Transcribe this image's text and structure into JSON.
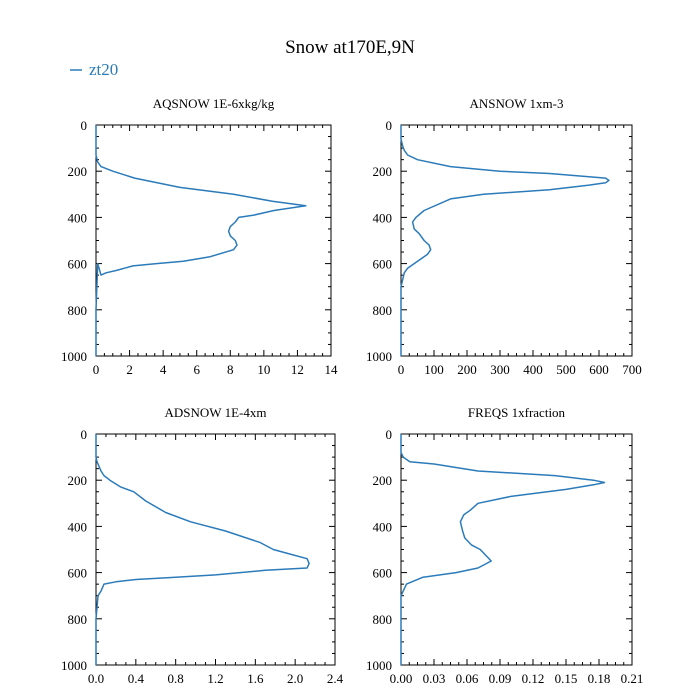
{
  "title": "Snow at170E,9N",
  "legend": {
    "label": "zt20",
    "color": "#2b7bba",
    "placement": "top-left"
  },
  "chart_data": [
    {
      "type": "line",
      "title": "AQSNOW  1E-6xkg/kg",
      "xlim": [
        0,
        14
      ],
      "ylim": [
        1000,
        0
      ],
      "xticks": [
        "0",
        "2",
        "4",
        "6",
        "8",
        "10",
        "12",
        "14"
      ],
      "yticks": [
        "0",
        "200",
        "400",
        "600",
        "800",
        "1000"
      ],
      "series": [
        {
          "name": "zt20",
          "x": [
            0,
            0,
            0.1,
            0.3,
            0.6,
            1.2,
            2.2,
            3.6,
            5.2,
            6.8,
            8.2,
            8.4,
            8.3,
            8.0,
            7.9,
            8.0,
            8.3,
            8.5,
            9.4,
            10.6,
            12.5,
            10.5,
            8.2,
            5.0,
            2.3,
            1.0,
            0.3,
            0.1,
            0,
            0,
            0,
            0,
            0,
            0,
            0
          ],
          "y": [
            1000,
            800,
            600,
            650,
            640,
            630,
            610,
            600,
            590,
            570,
            540,
            520,
            500,
            480,
            460,
            440,
            420,
            400,
            390,
            370,
            350,
            330,
            300,
            270,
            230,
            200,
            180,
            160,
            130,
            110,
            90,
            70,
            50,
            30,
            0
          ]
        }
      ]
    },
    {
      "type": "line",
      "title": "ANSNOW  1xm-3",
      "xlim": [
        0,
        700
      ],
      "ylim": [
        1000,
        0
      ],
      "xticks": [
        "0",
        "100",
        "200",
        "300",
        "400",
        "500",
        "600",
        "700"
      ],
      "yticks": [
        "0",
        "200",
        "400",
        "600",
        "800",
        "1000"
      ],
      "series": [
        {
          "name": "zt20",
          "x": [
            0,
            0,
            0,
            10,
            20,
            40,
            60,
            80,
            90,
            85,
            70,
            55,
            40,
            35,
            45,
            70,
            150,
            250,
            450,
            570,
            620,
            630,
            620,
            450,
            300,
            150,
            50,
            20,
            10,
            5,
            0,
            0,
            0,
            0
          ],
          "y": [
            1000,
            800,
            700,
            640,
            620,
            600,
            580,
            560,
            540,
            520,
            500,
            470,
            450,
            420,
            400,
            370,
            320,
            300,
            280,
            260,
            250,
            240,
            230,
            210,
            200,
            180,
            150,
            130,
            110,
            90,
            60,
            40,
            20,
            0
          ]
        }
      ]
    },
    {
      "type": "line",
      "title": "ADSNOW  1E-4xm",
      "xlim": [
        0,
        2.4
      ],
      "ylim": [
        1000,
        0
      ],
      "xticks": [
        "0.0",
        "0.4",
        "0.8",
        "1.2",
        "1.6",
        "2.0",
        "2.4"
      ],
      "yticks": [
        "0",
        "200",
        "400",
        "600",
        "800",
        "1000"
      ],
      "series": [
        {
          "name": "zt20",
          "x": [
            0,
            0,
            0.02,
            0.05,
            0.08,
            0.2,
            0.4,
            0.8,
            1.2,
            1.7,
            2.12,
            2.14,
            2.12,
            1.95,
            1.78,
            1.65,
            1.3,
            0.95,
            0.7,
            0.5,
            0.38,
            0.25,
            0.14,
            0.08,
            0.05,
            0.03,
            0.01,
            0,
            0,
            0,
            0
          ],
          "y": [
            1000,
            800,
            700,
            680,
            650,
            640,
            630,
            620,
            610,
            590,
            580,
            560,
            540,
            520,
            500,
            470,
            420,
            380,
            340,
            290,
            250,
            230,
            200,
            180,
            160,
            140,
            120,
            100,
            60,
            30,
            0
          ]
        }
      ]
    },
    {
      "type": "line",
      "title": "FREQS   1xfraction",
      "xlim": [
        0,
        0.21
      ],
      "ylim": [
        1000,
        0
      ],
      "xticks": [
        "0.00",
        "0.03",
        "0.06",
        "0.09",
        "0.12",
        "0.15",
        "0.18",
        "0.21"
      ],
      "yticks": [
        "0",
        "200",
        "400",
        "600",
        "800",
        "1000"
      ],
      "series": [
        {
          "name": "zt20",
          "x": [
            0,
            0,
            0,
            0.005,
            0.02,
            0.05,
            0.07,
            0.082,
            0.078,
            0.072,
            0.064,
            0.058,
            0.056,
            0.054,
            0.057,
            0.063,
            0.07,
            0.1,
            0.15,
            0.175,
            0.185,
            0.175,
            0.14,
            0.07,
            0.03,
            0.008,
            0.002,
            0,
            0,
            0
          ],
          "y": [
            1000,
            800,
            700,
            650,
            620,
            600,
            580,
            550,
            530,
            500,
            480,
            450,
            420,
            380,
            350,
            330,
            300,
            270,
            240,
            220,
            210,
            200,
            180,
            160,
            130,
            120,
            100,
            80,
            40,
            0
          ]
        }
      ]
    }
  ]
}
